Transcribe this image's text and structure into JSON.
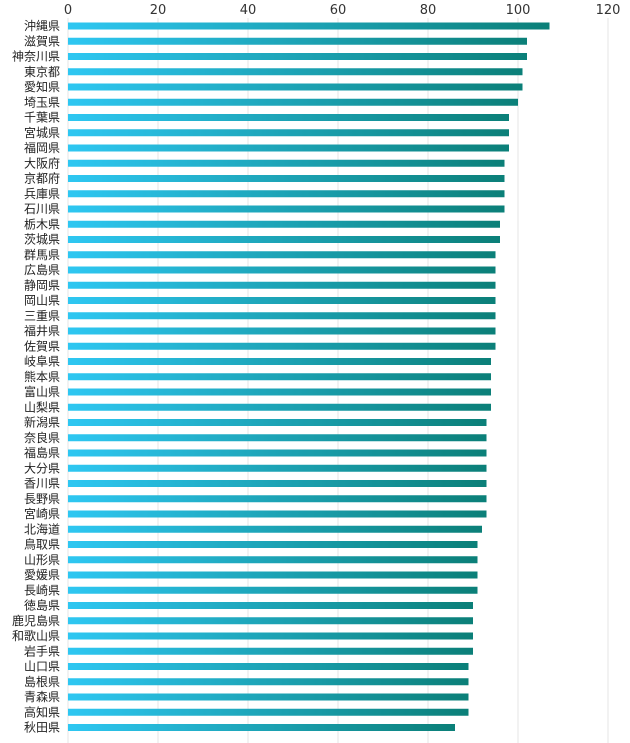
{
  "chart_data": {
    "type": "bar",
    "orientation": "horizontal",
    "xlim": [
      0,
      120
    ],
    "x_ticks": [
      "0",
      "20",
      "40",
      "60",
      "80",
      "100",
      "120"
    ],
    "x_axis_position": "top",
    "grid": true,
    "legend": "none",
    "bar_gradient": [
      "#2ec7f2",
      "#0b7f78"
    ],
    "categories": [
      "沖縄県",
      "滋賀県",
      "神奈川県",
      "東京都",
      "愛知県",
      "埼玉県",
      "千葉県",
      "宮城県",
      "福岡県",
      "大阪府",
      "京都府",
      "兵庫県",
      "石川県",
      "栃木県",
      "茨城県",
      "群馬県",
      "広島県",
      "静岡県",
      "岡山県",
      "三重県",
      "福井県",
      "佐賀県",
      "岐阜県",
      "熊本県",
      "富山県",
      "山梨県",
      "新潟県",
      "奈良県",
      "福島県",
      "大分県",
      "香川県",
      "長野県",
      "宮崎県",
      "北海道",
      "鳥取県",
      "山形県",
      "愛媛県",
      "長崎県",
      "徳島県",
      "鹿児島県",
      "和歌山県",
      "岩手県",
      "山口県",
      "島根県",
      "青森県",
      "高知県",
      "秋田県"
    ],
    "values": [
      107,
      102,
      102,
      101,
      101,
      100,
      98,
      98,
      98,
      97,
      97,
      97,
      97,
      96,
      96,
      95,
      95,
      95,
      95,
      95,
      95,
      95,
      94,
      94,
      94,
      94,
      93,
      93,
      93,
      93,
      93,
      93,
      93,
      92,
      91,
      91,
      91,
      91,
      90,
      90,
      90,
      90,
      89,
      89,
      89,
      89,
      86
    ]
  }
}
